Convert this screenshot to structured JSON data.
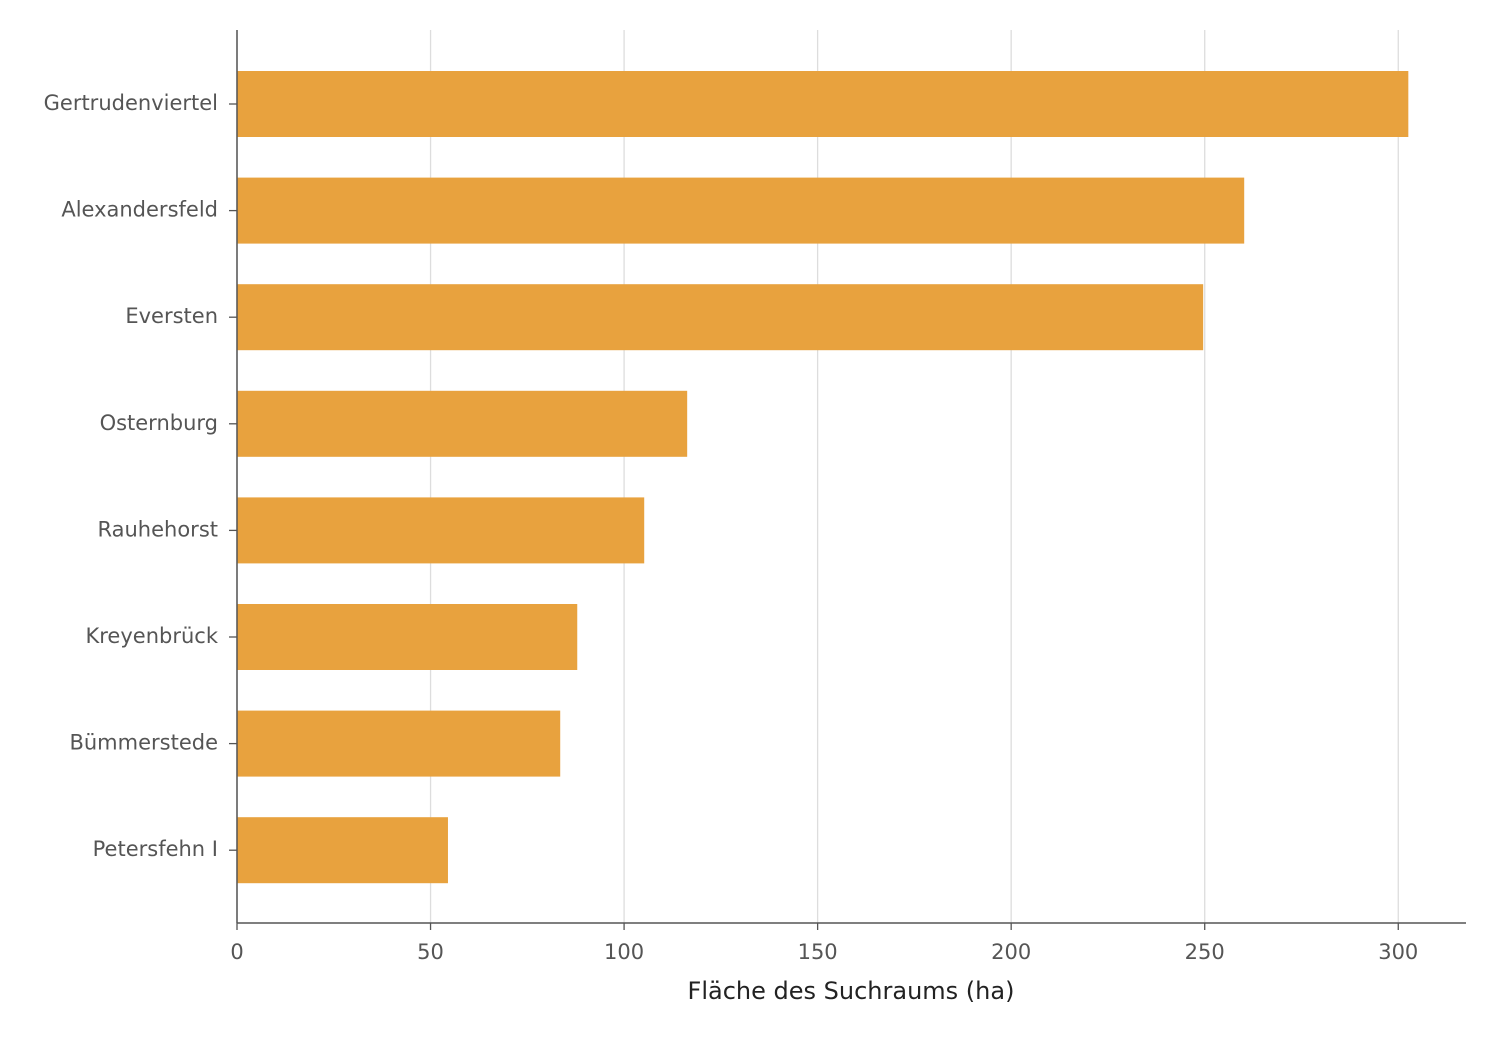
{
  "chart_data": {
    "type": "bar",
    "orientation": "horizontal",
    "xlabel": "Fläche des Suchraums (ha)",
    "categories": [
      "Gertrudenviertel",
      "Alexandersfeld",
      "Eversten",
      "Osternburg",
      "Rauhehorst",
      "Kreyenbrück",
      "Bümmerstede",
      "Petersfehn I"
    ],
    "values": [
      302.6,
      260.2,
      249.6,
      116.3,
      105.2,
      87.9,
      83.5,
      54.5
    ],
    "color": "#e8a23e",
    "xlim": [
      0,
      317.5
    ],
    "xticks": [
      0,
      50,
      100,
      150,
      200,
      250,
      300
    ],
    "grid": true
  }
}
